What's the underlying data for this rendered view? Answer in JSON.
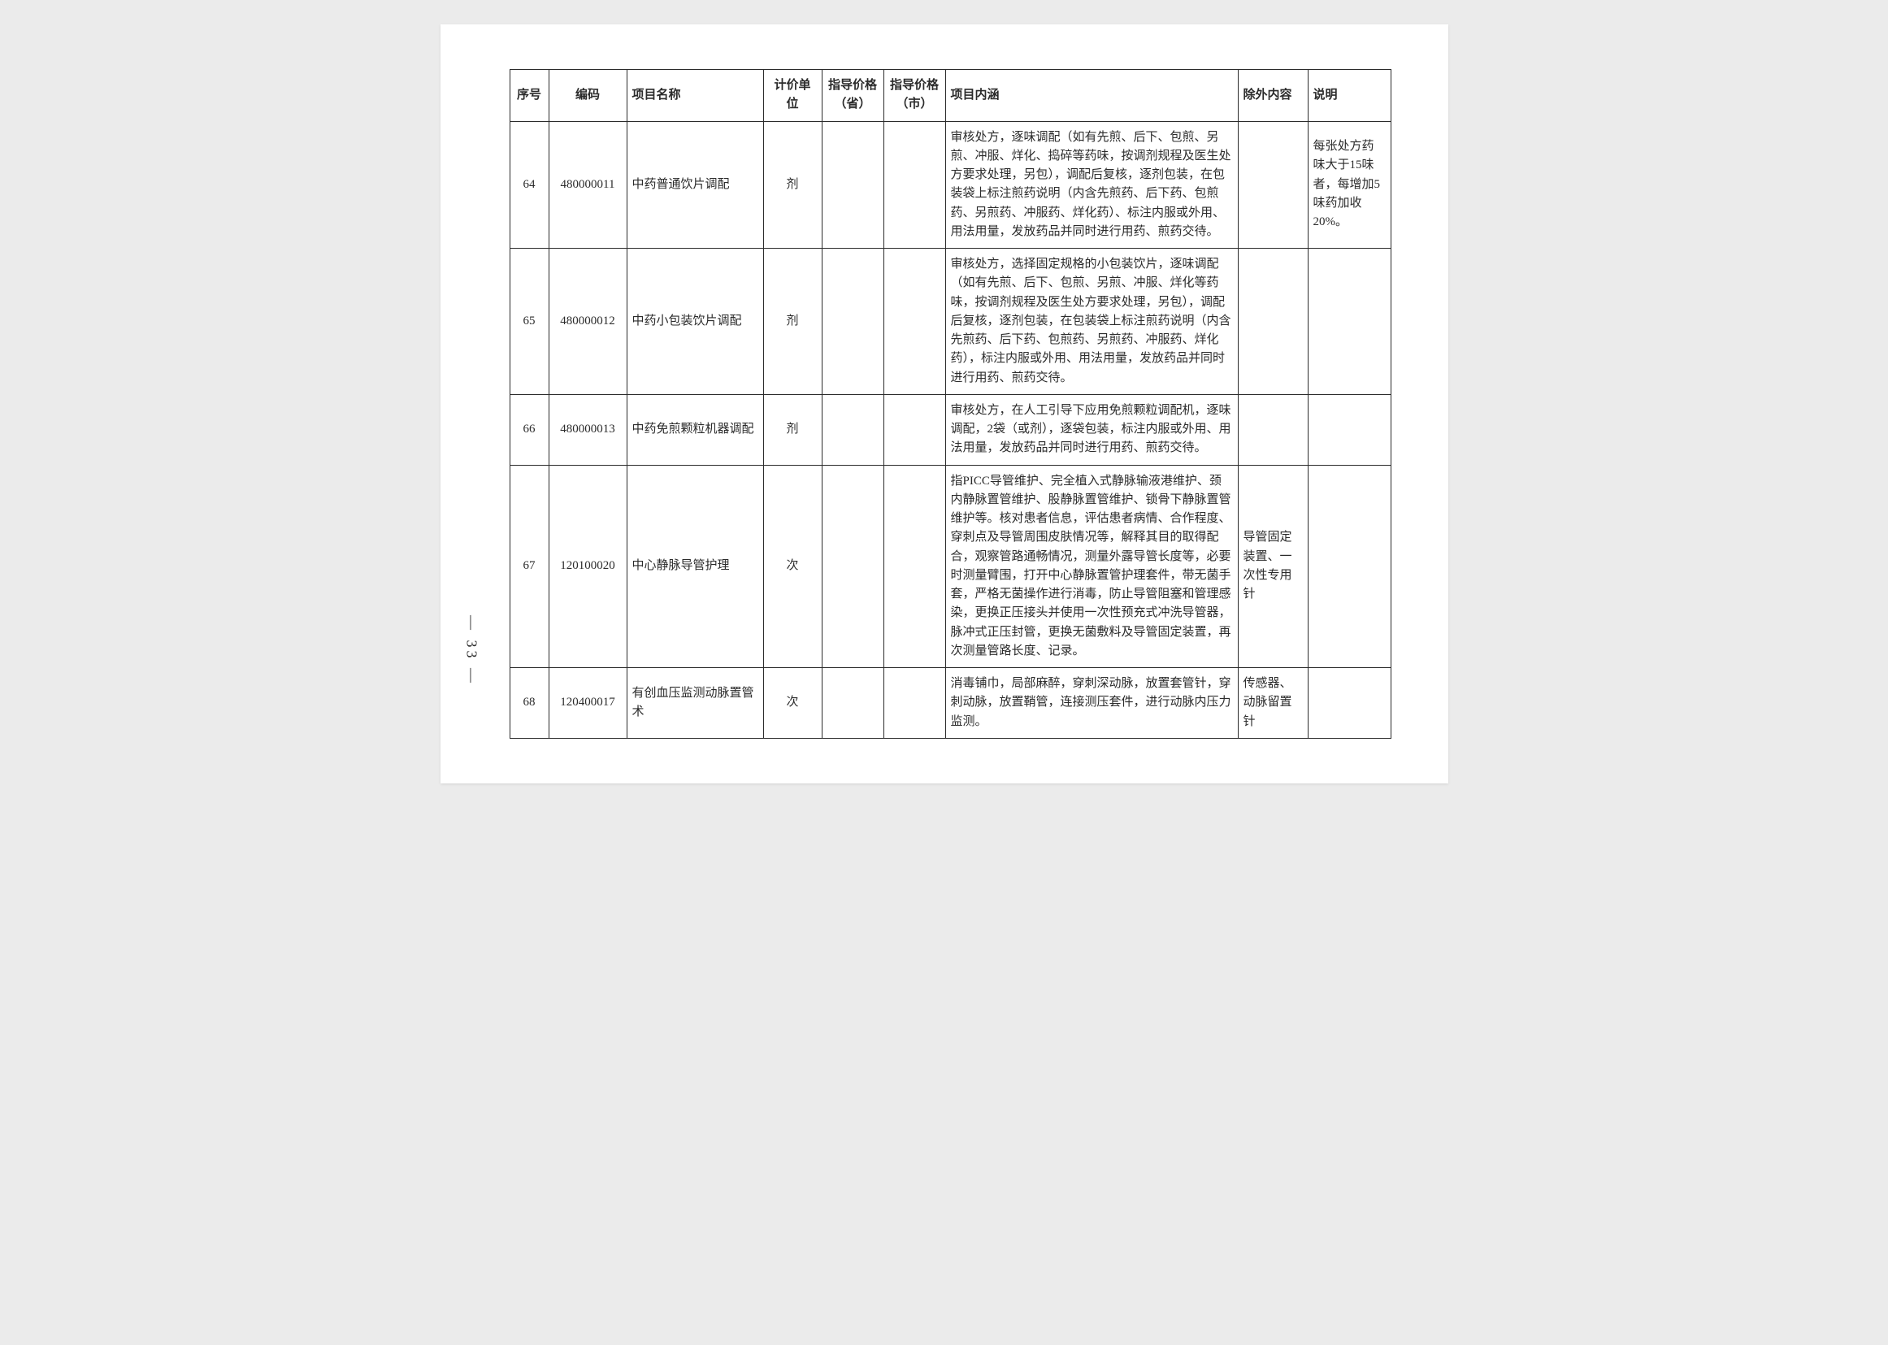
{
  "page_number": "— 33 —",
  "headers": {
    "seq": "序号",
    "code": "编码",
    "name": "项目名称",
    "unit": "计价单位",
    "price_prov": "指导价格（省）",
    "price_city": "指导价格（市）",
    "desc": "项目内涵",
    "excl": "除外内容",
    "note": "说明"
  },
  "rows": [
    {
      "seq": "64",
      "code": "480000011",
      "name": "中药普通饮片调配",
      "unit": "剂",
      "price_prov": "",
      "price_city": "",
      "desc": "审核处方，逐味调配（如有先煎、后下、包煎、另煎、冲服、烊化、捣碎等药味，按调剂规程及医生处方要求处理，另包），调配后复核，逐剂包装，在包装袋上标注煎药说明（内含先煎药、后下药、包煎药、另煎药、冲服药、烊化药）、标注内服或外用、用法用量，发放药品并同时进行用药、煎药交待。",
      "excl": "",
      "note": "每张处方药味大于15味者，每增加5味药加收20%。"
    },
    {
      "seq": "65",
      "code": "480000012",
      "name": "中药小包装饮片调配",
      "unit": "剂",
      "price_prov": "",
      "price_city": "",
      "desc": "审核处方，选择固定规格的小包装饮片，逐味调配（如有先煎、后下、包煎、另煎、冲服、烊化等药味，按调剂规程及医生处方要求处理，另包），调配后复核，逐剂包装，在包装袋上标注煎药说明（内含先煎药、后下药、包煎药、另煎药、冲服药、烊化药），标注内服或外用、用法用量，发放药品并同时进行用药、煎药交待。",
      "excl": "",
      "note": ""
    },
    {
      "seq": "66",
      "code": "480000013",
      "name": "中药免煎颗粒机器调配",
      "unit": "剂",
      "price_prov": "",
      "price_city": "",
      "desc": "审核处方，在人工引导下应用免煎颗粒调配机，逐味调配，2袋（或剂），逐袋包装，标注内服或外用、用法用量，发放药品并同时进行用药、煎药交待。",
      "excl": "",
      "note": ""
    },
    {
      "seq": "67",
      "code": "120100020",
      "name": "中心静脉导管护理",
      "unit": "次",
      "price_prov": "",
      "price_city": "",
      "desc": "指PICC导管维护、完全植入式静脉输液港维护、颈内静脉置管维护、股静脉置管维护、锁骨下静脉置管维护等。核对患者信息，评估患者病情、合作程度、穿刺点及导管周围皮肤情况等，解释其目的取得配合，观察管路通畅情况，测量外露导管长度等，必要时测量臂围，打开中心静脉置管护理套件，带无菌手套，严格无菌操作进行消毒，防止导管阻塞和管理感染，更换正压接头并使用一次性预充式冲洗导管器，脉冲式正压封管，更换无菌敷料及导管固定装置，再次测量管路长度、记录。",
      "excl": "导管固定装置、一次性专用针",
      "note": ""
    },
    {
      "seq": "68",
      "code": "120400017",
      "name": "有创血压监测动脉置管术",
      "unit": "次",
      "price_prov": "",
      "price_city": "",
      "desc": "消毒铺巾，局部麻醉，穿刺深动脉，放置套管针，穿刺动脉，放置鞘管，连接测压套件，进行动脉内压力监测。",
      "excl": "传感器、动脉留置针",
      "note": ""
    }
  ]
}
